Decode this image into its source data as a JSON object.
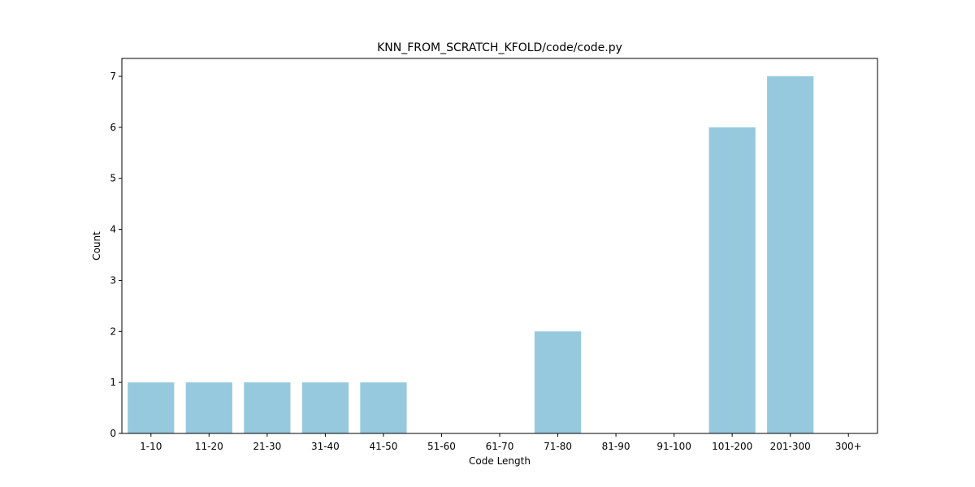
{
  "chart_data": {
    "type": "bar",
    "title": "KNN_FROM_SCRATCH_KFOLD/code/code.py",
    "xlabel": "Code Length",
    "ylabel": "Count",
    "categories": [
      "1-10",
      "11-20",
      "21-30",
      "31-40",
      "41-50",
      "51-60",
      "61-70",
      "71-80",
      "81-90",
      "91-100",
      "101-200",
      "201-300",
      "300+"
    ],
    "values": [
      1,
      1,
      1,
      1,
      1,
      0,
      0,
      2,
      0,
      0,
      6,
      7,
      0
    ],
    "yticks": [
      0,
      1,
      2,
      3,
      4,
      5,
      6,
      7
    ],
    "ylim": [
      0,
      7.35
    ],
    "bar_color": "#96c9de",
    "grid": false,
    "legend": "none"
  }
}
